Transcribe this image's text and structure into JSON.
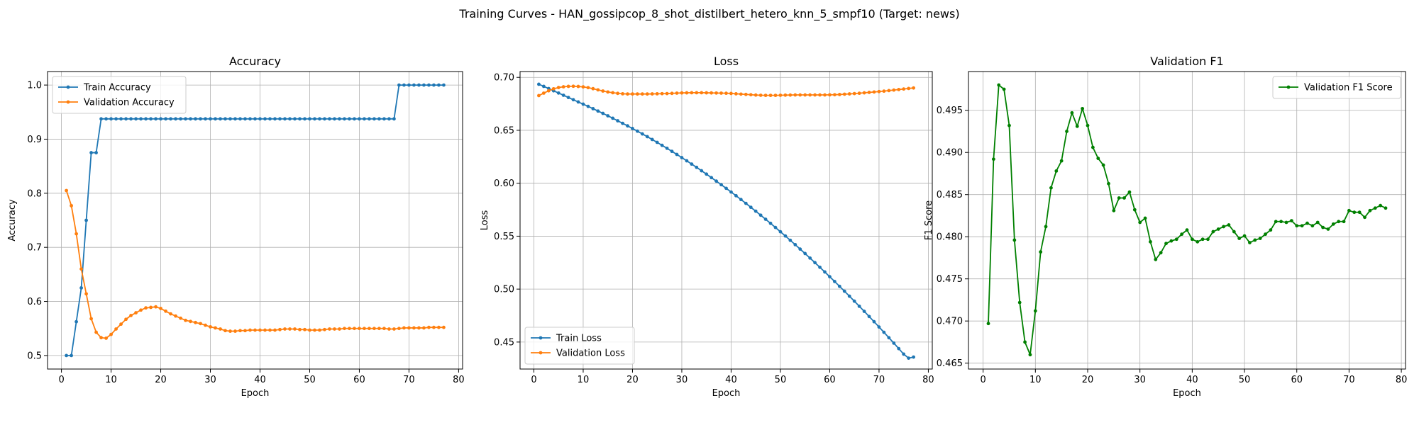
{
  "figure": {
    "suptitle": "Training Curves - HAN_gossipcop_8_shot_distilbert_hetero_knn_5_smpf10 (Target: news)"
  },
  "chart_data": [
    {
      "type": "line",
      "title": "Accuracy",
      "xlabel": "Epoch",
      "ylabel": "Accuracy",
      "xlim": [
        -2.8,
        80.8
      ],
      "ylim": [
        0.475,
        1.025
      ],
      "xticks": [
        0,
        10,
        20,
        30,
        40,
        50,
        60,
        70,
        80
      ],
      "yticks": [
        0.5,
        0.6,
        0.7,
        0.8,
        0.9,
        1.0
      ],
      "ytick_labels": [
        "0.5",
        "0.6",
        "0.7",
        "0.8",
        "0.9",
        "1.0"
      ],
      "grid": true,
      "legend": "upper-left",
      "series": [
        {
          "name": "Train Accuracy",
          "color": "#1f77b4",
          "values": [
            0.5,
            0.5,
            0.5625,
            0.625,
            0.75,
            0.875,
            0.875,
            0.9375,
            0.9375,
            0.9375,
            0.9375,
            0.9375,
            0.9375,
            0.9375,
            0.9375,
            0.9375,
            0.9375,
            0.9375,
            0.9375,
            0.9375,
            0.9375,
            0.9375,
            0.9375,
            0.9375,
            0.9375,
            0.9375,
            0.9375,
            0.9375,
            0.9375,
            0.9375,
            0.9375,
            0.9375,
            0.9375,
            0.9375,
            0.9375,
            0.9375,
            0.9375,
            0.9375,
            0.9375,
            0.9375,
            0.9375,
            0.9375,
            0.9375,
            0.9375,
            0.9375,
            0.9375,
            0.9375,
            0.9375,
            0.9375,
            0.9375,
            0.9375,
            0.9375,
            0.9375,
            0.9375,
            0.9375,
            0.9375,
            0.9375,
            0.9375,
            0.9375,
            0.9375,
            0.9375,
            0.9375,
            0.9375,
            0.9375,
            0.9375,
            0.9375,
            0.9375,
            1.0,
            1.0,
            1.0,
            1.0,
            1.0,
            1.0,
            1.0,
            1.0,
            1.0,
            1.0
          ]
        },
        {
          "name": "Validation Accuracy",
          "color": "#ff7f0e",
          "values": [
            0.805,
            0.777,
            0.725,
            0.66,
            0.614,
            0.568,
            0.543,
            0.533,
            0.532,
            0.539,
            0.549,
            0.558,
            0.567,
            0.574,
            0.579,
            0.584,
            0.588,
            0.589,
            0.59,
            0.587,
            0.582,
            0.577,
            0.573,
            0.569,
            0.565,
            0.563,
            0.561,
            0.559,
            0.556,
            0.553,
            0.551,
            0.549,
            0.546,
            0.545,
            0.545,
            0.546,
            0.546,
            0.547,
            0.547,
            0.547,
            0.547,
            0.547,
            0.547,
            0.548,
            0.549,
            0.549,
            0.549,
            0.548,
            0.548,
            0.547,
            0.547,
            0.547,
            0.548,
            0.549,
            0.549,
            0.549,
            0.55,
            0.55,
            0.55,
            0.55,
            0.55,
            0.55,
            0.55,
            0.55,
            0.55,
            0.549,
            0.549,
            0.55,
            0.551,
            0.551,
            0.551,
            0.551,
            0.551,
            0.552,
            0.552,
            0.552,
            0.552
          ]
        }
      ]
    },
    {
      "type": "line",
      "title": "Loss",
      "xlabel": "Epoch",
      "ylabel": "Loss",
      "xlim": [
        -2.8,
        80.8
      ],
      "ylim": [
        0.4245,
        0.7055
      ],
      "xticks": [
        0,
        10,
        20,
        30,
        40,
        50,
        60,
        70,
        80
      ],
      "yticks": [
        0.45,
        0.5,
        0.55,
        0.6,
        0.65,
        0.7
      ],
      "ytick_labels": [
        "0.45",
        "0.50",
        "0.55",
        "0.60",
        "0.65",
        "0.70"
      ],
      "grid": true,
      "legend": "lower-left",
      "series": [
        {
          "name": "Train Loss",
          "color": "#1f77b4",
          "values": [
            0.6935,
            0.6915,
            0.6894,
            0.6873,
            0.6852,
            0.6831,
            0.681,
            0.6789,
            0.6768,
            0.6747,
            0.6726,
            0.6704,
            0.6682,
            0.666,
            0.6637,
            0.6614,
            0.659,
            0.6566,
            0.6542,
            0.6517,
            0.6492,
            0.6466,
            0.644,
            0.6413,
            0.6386,
            0.6358,
            0.633,
            0.6301,
            0.6272,
            0.6242,
            0.6212,
            0.6181,
            0.615,
            0.6118,
            0.6086,
            0.6053,
            0.602,
            0.5986,
            0.5952,
            0.5917,
            0.5882,
            0.5846,
            0.581,
            0.5773,
            0.5736,
            0.5698,
            0.566,
            0.5621,
            0.5582,
            0.5542,
            0.5502,
            0.5461,
            0.542,
            0.5378,
            0.5336,
            0.5293,
            0.525,
            0.5206,
            0.5162,
            0.5117,
            0.5072,
            0.5026,
            0.498,
            0.4933,
            0.4886,
            0.4838,
            0.479,
            0.4741,
            0.4692,
            0.4642,
            0.4592,
            0.4541,
            0.449,
            0.4438,
            0.4386,
            0.4348,
            0.4358
          ]
        },
        {
          "name": "Validation Loss",
          "color": "#ff7f0e",
          "values": [
            0.6828,
            0.6851,
            0.6873,
            0.6892,
            0.6904,
            0.6911,
            0.6915,
            0.6916,
            0.6914,
            0.691,
            0.6903,
            0.6893,
            0.6882,
            0.6871,
            0.6862,
            0.6855,
            0.6849,
            0.6845,
            0.6843,
            0.6843,
            0.6843,
            0.6843,
            0.6843,
            0.6844,
            0.6845,
            0.6846,
            0.6847,
            0.6849,
            0.6851,
            0.6853,
            0.6854,
            0.6855,
            0.6855,
            0.6855,
            0.6854,
            0.6853,
            0.6852,
            0.6851,
            0.685,
            0.6848,
            0.6845,
            0.6842,
            0.6839,
            0.6836,
            0.6833,
            0.6831,
            0.683,
            0.683,
            0.683,
            0.6831,
            0.6832,
            0.6833,
            0.6834,
            0.6834,
            0.6834,
            0.6834,
            0.6834,
            0.6834,
            0.6834,
            0.6835,
            0.6836,
            0.6838,
            0.6841,
            0.6844,
            0.6847,
            0.685,
            0.6854,
            0.6858,
            0.6862,
            0.6866,
            0.687,
            0.6875,
            0.688,
            0.6885,
            0.689,
            0.6895,
            0.69
          ]
        }
      ]
    },
    {
      "type": "line",
      "title": "Validation F1",
      "xlabel": "Epoch",
      "ylabel": "F1 Score",
      "xlim": [
        -2.8,
        80.8
      ],
      "ylim": [
        0.4643,
        0.4996
      ],
      "xticks": [
        0,
        10,
        20,
        30,
        40,
        50,
        60,
        70,
        80
      ],
      "yticks": [
        0.465,
        0.47,
        0.475,
        0.48,
        0.485,
        0.49,
        0.495
      ],
      "ytick_labels": [
        "0.465",
        "0.470",
        "0.475",
        "0.480",
        "0.485",
        "0.490",
        "0.495"
      ],
      "grid": true,
      "legend": "upper-right",
      "series": [
        {
          "name": "Validation F1 Score",
          "color": "#008000",
          "values": [
            0.4697,
            0.4892,
            0.498,
            0.4975,
            0.4932,
            0.4796,
            0.4722,
            0.4675,
            0.466,
            0.4712,
            0.4782,
            0.4812,
            0.4858,
            0.4878,
            0.489,
            0.4925,
            0.4947,
            0.4931,
            0.4952,
            0.4932,
            0.4906,
            0.4893,
            0.4885,
            0.4863,
            0.4831,
            0.4846,
            0.4846,
            0.4853,
            0.4832,
            0.4817,
            0.4822,
            0.4794,
            0.4773,
            0.4781,
            0.4792,
            0.4795,
            0.4797,
            0.4803,
            0.4808,
            0.4797,
            0.4794,
            0.4797,
            0.4797,
            0.4806,
            0.4809,
            0.4812,
            0.4814,
            0.4806,
            0.4798,
            0.4801,
            0.4793,
            0.4796,
            0.4798,
            0.4803,
            0.4808,
            0.4818,
            0.4818,
            0.4817,
            0.4819,
            0.4813,
            0.4813,
            0.4816,
            0.4813,
            0.4817,
            0.4811,
            0.4809,
            0.4815,
            0.4818,
            0.4818,
            0.4831,
            0.4829,
            0.4829,
            0.4823,
            0.4831,
            0.4834,
            0.4837,
            0.4834
          ]
        }
      ]
    }
  ]
}
